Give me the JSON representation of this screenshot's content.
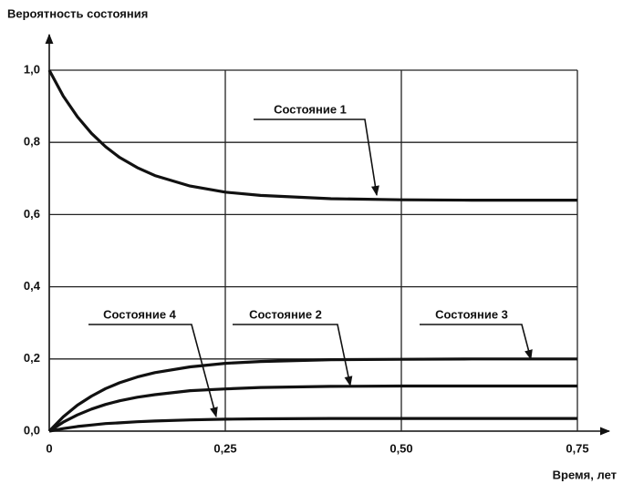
{
  "chart_data": {
    "type": "line",
    "y_label": "Вероятность состояния",
    "x_label": "Время, лет",
    "x": [
      0,
      0.02,
      0.04,
      0.06,
      0.08,
      0.1,
      0.125,
      0.15,
      0.2,
      0.25,
      0.3,
      0.4,
      0.5,
      0.6,
      0.75
    ],
    "series": [
      {
        "name": "Состояние 1",
        "color": "#111111",
        "values": [
          1,
          0.928,
          0.871,
          0.825,
          0.788,
          0.758,
          0.73,
          0.708,
          0.679,
          0.662,
          0.653,
          0.644,
          0.641,
          0.64,
          0.64
        ]
      },
      {
        "name": "Состояние 2",
        "color": "#111111",
        "values": [
          0,
          0.025,
          0.045,
          0.061,
          0.074,
          0.084,
          0.094,
          0.101,
          0.112,
          0.117,
          0.121,
          0.124,
          0.125,
          0.125,
          0.125
        ]
      },
      {
        "name": "Состояние 3",
        "color": "#111111",
        "values": [
          0,
          0.04,
          0.072,
          0.097,
          0.118,
          0.134,
          0.15,
          0.162,
          0.178,
          0.188,
          0.193,
          0.198,
          0.199,
          0.2,
          0.2
        ]
      },
      {
        "name": "Состояние 4",
        "color": "#111111",
        "values": [
          0,
          0.007,
          0.013,
          0.017,
          0.021,
          0.023,
          0.026,
          0.028,
          0.031,
          0.033,
          0.034,
          0.035,
          0.035,
          0.035,
          0.035
        ]
      }
    ],
    "xlim": [
      0,
      0.75
    ],
    "ylim": [
      0,
      1
    ],
    "xticks": [
      0,
      {
        "value": 0.25,
        "label": "0,25"
      },
      {
        "value": 0.5,
        "label": "0,50"
      },
      {
        "value": 0.75,
        "label": "0,75"
      }
    ],
    "yticks": [
      {
        "value": 0,
        "label": "0,0"
      },
      {
        "value": 0.2,
        "label": "0,2"
      },
      {
        "value": 0.4,
        "label": "0,4"
      },
      {
        "value": 0.6,
        "label": "0,6"
      },
      {
        "value": 0.8,
        "label": "0,8"
      },
      {
        "value": 1,
        "label": "1,0"
      }
    ],
    "grid": true
  }
}
